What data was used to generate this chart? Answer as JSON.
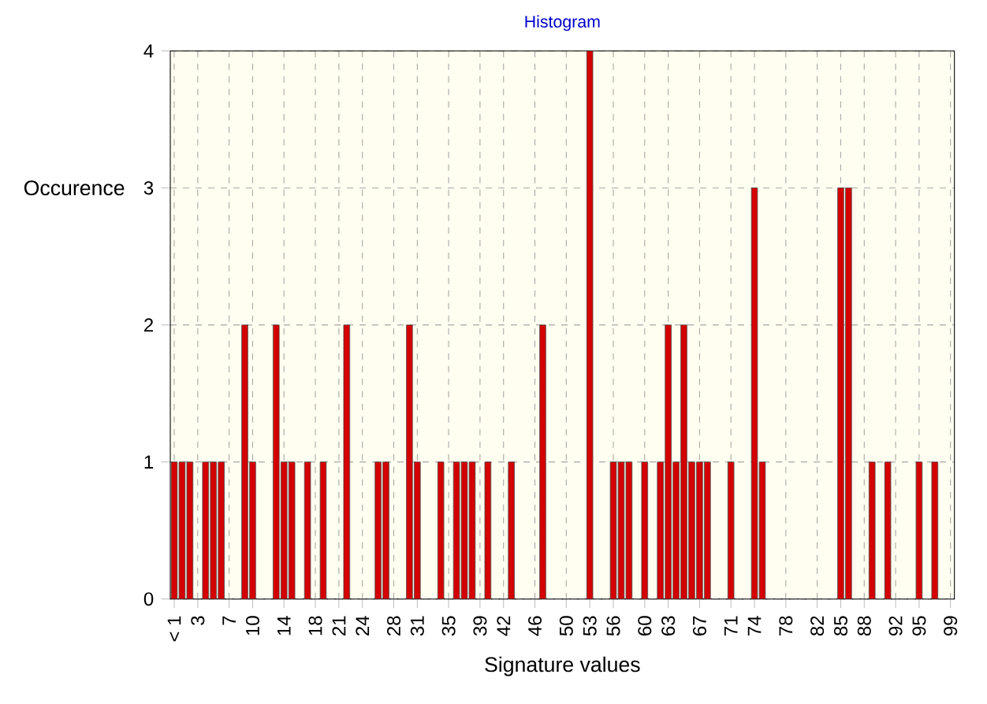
{
  "chart_data": {
    "type": "bar",
    "title": "Histogram",
    "xlabel": "Signature values",
    "ylabel": "Occurence",
    "categories": [
      "< 1",
      null,
      null,
      "3",
      null,
      null,
      null,
      "7",
      null,
      null,
      "10",
      null,
      null,
      null,
      "14",
      null,
      null,
      null,
      "18",
      null,
      null,
      "21",
      null,
      null,
      "24",
      null,
      null,
      null,
      "28",
      null,
      null,
      "31",
      null,
      null,
      null,
      "35",
      null,
      null,
      null,
      "39",
      null,
      null,
      "42",
      null,
      null,
      null,
      "46",
      null,
      null,
      null,
      "50",
      null,
      null,
      "53",
      null,
      null,
      "56",
      null,
      null,
      null,
      "60",
      null,
      null,
      "63",
      null,
      null,
      null,
      "67",
      null,
      null,
      null,
      "71",
      null,
      null,
      "74",
      null,
      null,
      null,
      "78",
      null,
      null,
      null,
      "82",
      null,
      null,
      "85",
      null,
      null,
      "88",
      null,
      null,
      null,
      "92",
      null,
      null,
      "95",
      null,
      null,
      null,
      "99"
    ],
    "values": [
      1,
      1,
      1,
      0,
      1,
      1,
      1,
      0,
      0,
      2,
      1,
      0,
      0,
      2,
      1,
      1,
      0,
      1,
      0,
      1,
      0,
      0,
      2,
      0,
      0,
      0,
      1,
      1,
      0,
      0,
      2,
      1,
      0,
      0,
      1,
      0,
      1,
      1,
      1,
      0,
      1,
      0,
      0,
      1,
      0,
      0,
      0,
      2,
      0,
      0,
      0,
      0,
      0,
      4,
      0,
      0,
      1,
      1,
      1,
      0,
      1,
      0,
      1,
      2,
      1,
      2,
      1,
      1,
      1,
      0,
      0,
      1,
      0,
      0,
      3,
      1,
      0,
      0,
      0,
      0,
      0,
      0,
      0,
      0,
      0,
      3,
      3,
      0,
      0,
      1,
      0,
      1,
      0,
      0,
      0,
      1,
      0,
      1,
      0,
      0
    ],
    "color": "#d40000",
    "ylim": [
      0,
      4
    ],
    "yticks": [
      0,
      1,
      2,
      3,
      4
    ],
    "grid": true
  }
}
